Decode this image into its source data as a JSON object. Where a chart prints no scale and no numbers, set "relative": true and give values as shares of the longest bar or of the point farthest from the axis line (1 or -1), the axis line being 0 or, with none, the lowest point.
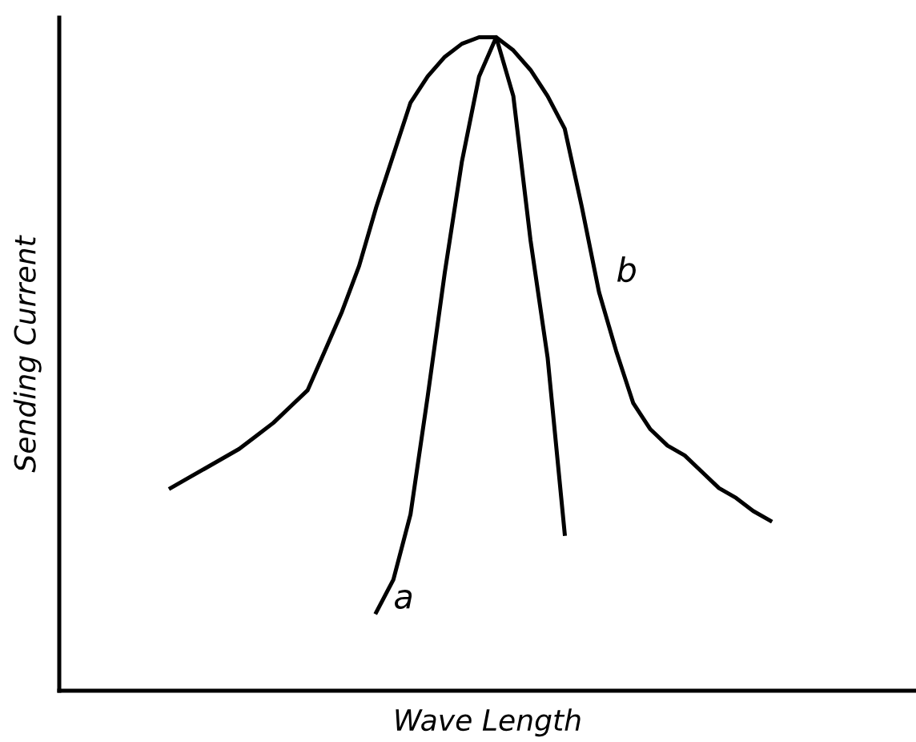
{
  "chart_data": {
    "type": "line",
    "relative": true,
    "xlabel": "Wave Length",
    "ylabel": "Sending Current",
    "tick_labels": false,
    "legend": false,
    "marker": "none",
    "line_style": "solid",
    "categories": [
      null,
      null,
      null,
      null,
      null,
      null,
      null,
      null,
      null,
      null,
      null,
      null,
      null,
      null,
      null,
      null,
      null,
      null,
      null,
      null,
      null,
      null,
      null,
      null,
      null,
      null,
      null,
      null,
      null,
      null,
      null,
      null,
      null,
      null,
      null,
      null
    ],
    "series": [
      {
        "name": "a",
        "color": "#000000",
        "values": [
          null,
          null,
          null,
          null,
          null,
          null,
          null,
          null,
          null,
          null,
          null,
          null,
          0.12,
          0.17,
          0.27,
          0.45,
          0.64,
          0.81,
          0.94,
          1.0,
          0.91,
          0.69,
          0.51,
          0.24,
          null,
          null,
          null,
          null,
          null,
          null,
          null,
          null,
          null,
          null,
          null,
          null
        ]
      },
      {
        "name": "b",
        "color": "#000000",
        "values": [
          0.31,
          0.325,
          0.34,
          0.355,
          0.37,
          0.39,
          0.41,
          0.435,
          0.46,
          0.52,
          0.58,
          0.65,
          0.74,
          0.82,
          0.9,
          0.94,
          0.97,
          0.99,
          1.0,
          1.0,
          0.98,
          0.95,
          0.91,
          0.86,
          0.74,
          0.61,
          0.52,
          0.44,
          0.4,
          0.375,
          0.36,
          0.335,
          0.31,
          0.295,
          0.275,
          0.26
        ]
      }
    ]
  }
}
